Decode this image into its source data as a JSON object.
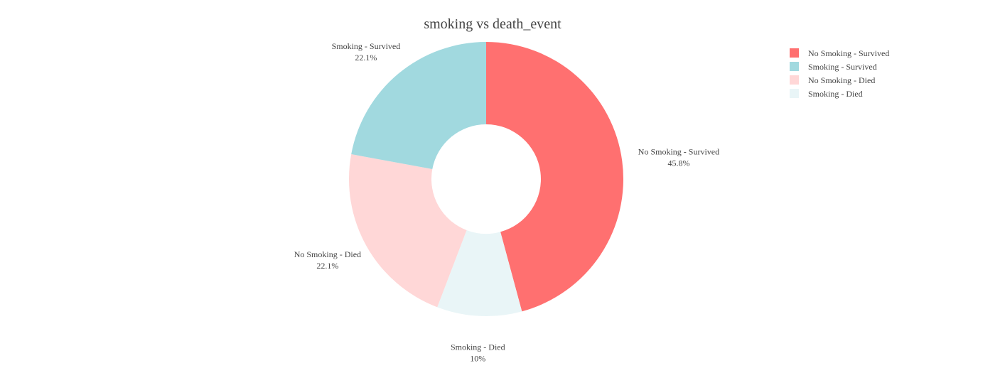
{
  "chart_data": {
    "type": "pie",
    "hole": true,
    "title": "smoking vs death_event",
    "legend_position": "top-right",
    "slices": [
      {
        "label": "No Smoking -  Survived",
        "percent_text": "45.8%",
        "value": 45.8,
        "color": "#ff7070"
      },
      {
        "label": "Smoking - Died",
        "percent_text": "10%",
        "value": 10.0,
        "color": "#e9f5f7"
      },
      {
        "label": "No Smoking - Died",
        "percent_text": "22.1%",
        "value": 22.1,
        "color": "#ffd7d7"
      },
      {
        "label": "Smoking - Survived",
        "percent_text": "22.1%",
        "value": 22.1,
        "color": "#a1d9df"
      }
    ],
    "legend": [
      {
        "label": "No Smoking -  Survived",
        "color": "#ff7070"
      },
      {
        "label": "Smoking - Survived",
        "color": "#a1d9df"
      },
      {
        "label": "No Smoking - Died",
        "color": "#ffd7d7"
      },
      {
        "label": "Smoking - Died",
        "color": "#e9f5f7"
      }
    ]
  }
}
